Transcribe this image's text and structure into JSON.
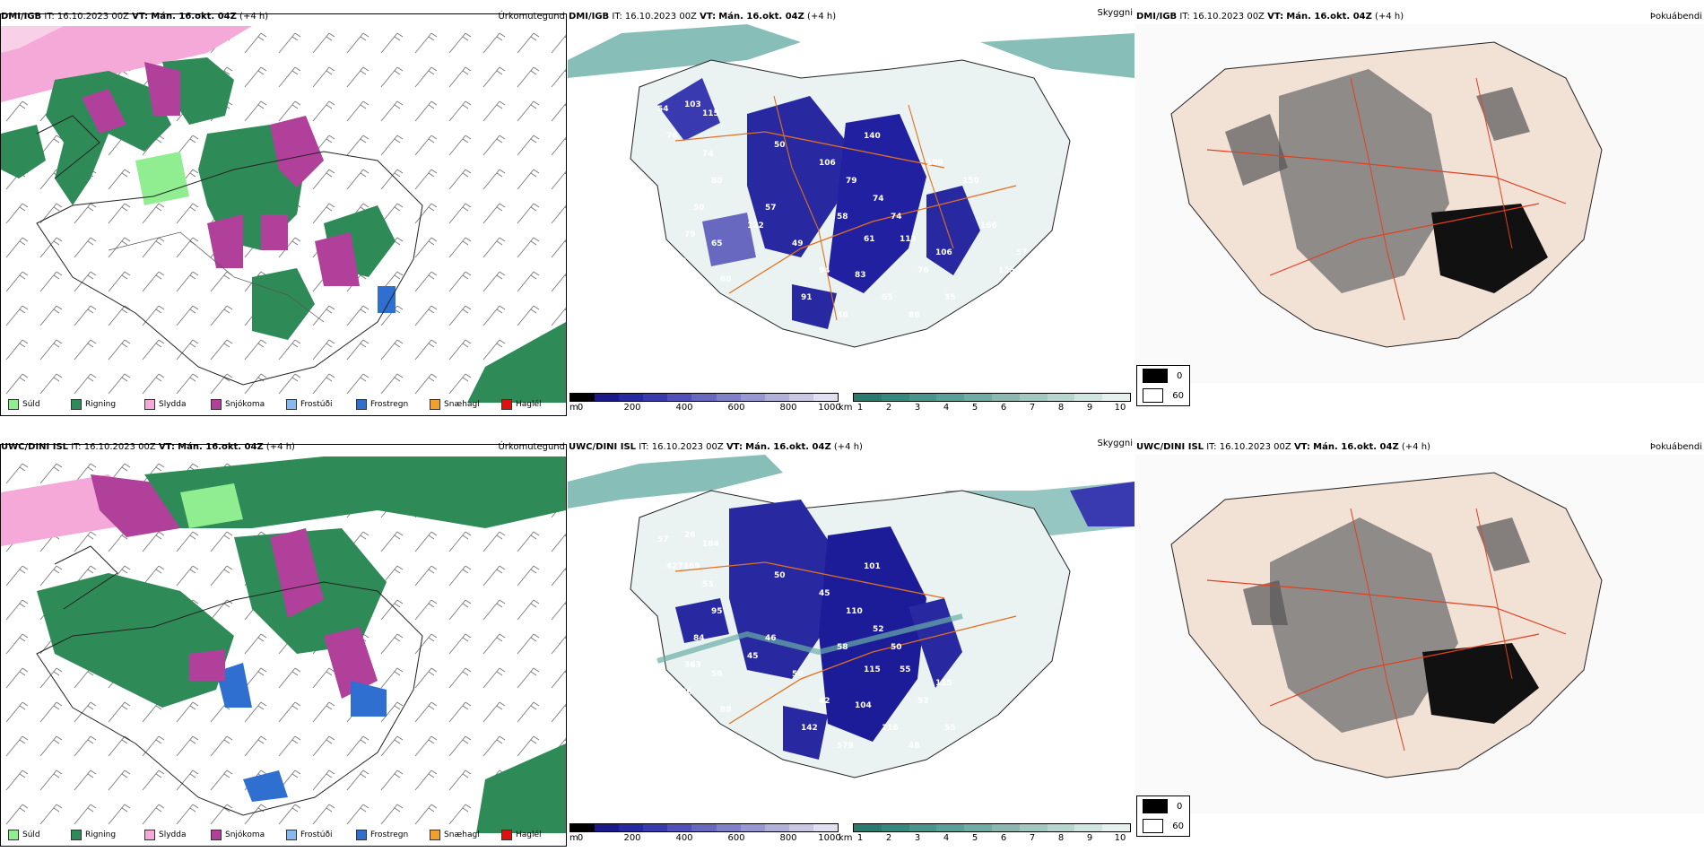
{
  "rows": [
    {
      "model": "DMI/IGB",
      "it_label": "IT:",
      "it_value": "16.10.2023 00Z",
      "vt_label": "VT:",
      "vt_value": "Mán. 16.okt. 04Z",
      "lead": "(+4 h)",
      "titles": [
        "Úrkomutegund",
        "Skyggni",
        "Þokuábendi"
      ],
      "visibility_labels": [
        "50",
        "106",
        "79",
        "74",
        "74",
        "58",
        "61",
        "113",
        "106",
        "76",
        "94",
        "83",
        "91",
        "46",
        "65",
        "86",
        "35",
        "49",
        "57",
        "122",
        "65",
        "60",
        "50",
        "80",
        "74",
        "92",
        "79",
        "76",
        "54",
        "103",
        "115",
        "140",
        "109",
        "150",
        "166",
        "135",
        "57"
      ]
    },
    {
      "model": "UWC/DINI ISL",
      "it_label": "IT:",
      "it_value": "16.10.2023 00Z",
      "vt_label": "VT:",
      "vt_value": "Mán. 16.okt. 04Z",
      "lead": "(+4 h)",
      "titles": [
        "Úrkomutegund",
        "Skyggni",
        "Þokuábendi"
      ],
      "visibility_labels": [
        "50",
        "45",
        "110",
        "52",
        "50",
        "58",
        "115",
        "55",
        "115",
        "52",
        "42",
        "104",
        "142",
        "579",
        "116",
        "48",
        "55",
        "50",
        "46",
        "45",
        "56",
        "88",
        "84",
        "95",
        "53",
        "166",
        "363",
        "427369",
        "57",
        "26",
        "184",
        "101"
      ]
    }
  ],
  "precip_legend": [
    {
      "label": "Súld",
      "color": "#90ee90"
    },
    {
      "label": "Rigning",
      "color": "#2e8b57"
    },
    {
      "label": "Slydda",
      "color": "#f4a9d8"
    },
    {
      "label": "Snjókoma",
      "color": "#b0409a"
    },
    {
      "label": "Frostúði",
      "color": "#87b8f0"
    },
    {
      "label": "Frostregn",
      "color": "#2e6fd0"
    },
    {
      "label": "Snæhagl",
      "color": "#f0a030"
    },
    {
      "label": "Haglél",
      "color": "#e01010"
    }
  ],
  "colorbar_m": {
    "unit": "m",
    "ticks": [
      "0",
      "200",
      "400",
      "600",
      "800",
      "1000"
    ],
    "colors": [
      "#000000",
      "#1a1a8a",
      "#2828a0",
      "#3a3ab0",
      "#5050b8",
      "#6868c0",
      "#8080c8",
      "#9898d0",
      "#b0b0d8",
      "#c8c8e4",
      "#e0e0f0"
    ]
  },
  "colorbar_km": {
    "unit": "km",
    "ticks": [
      "1",
      "2",
      "3",
      "4",
      "5",
      "6",
      "7",
      "8",
      "9",
      "10"
    ],
    "colors": [
      "#2a7a70",
      "#358a80",
      "#48958c",
      "#5aa098",
      "#70aca4",
      "#88b8b0",
      "#a0c8c0",
      "#b8d6d0",
      "#d0e4e0",
      "#e6f0ee"
    ]
  },
  "fog_legend": [
    {
      "label": "0",
      "color": "#000000"
    },
    {
      "label": "60",
      "color": "#ffffff"
    }
  ]
}
